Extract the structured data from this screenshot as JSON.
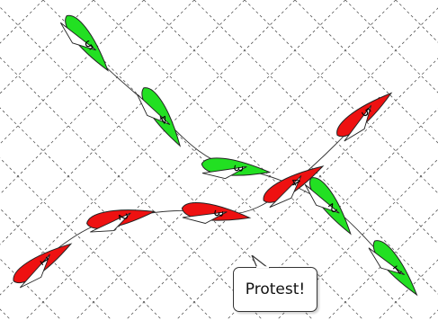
{
  "colors": {
    "green_boat": "#22e022",
    "red_boat": "#ee1111",
    "grid_line": "#555555",
    "track_line": "#333333"
  },
  "callout": {
    "text": "Protest!"
  },
  "fleets": [
    {
      "name": "green",
      "color_key": "green_boat",
      "boats": [
        {
          "number": "5"
        },
        {
          "number": "4"
        },
        {
          "number": "3"
        },
        {
          "number": "2"
        },
        {
          "number": "1"
        }
      ]
    },
    {
      "name": "red",
      "color_key": "red_boat",
      "boats": [
        {
          "number": "1"
        },
        {
          "number": "2"
        },
        {
          "number": "3"
        },
        {
          "number": "4"
        },
        {
          "number": "5"
        }
      ]
    }
  ]
}
